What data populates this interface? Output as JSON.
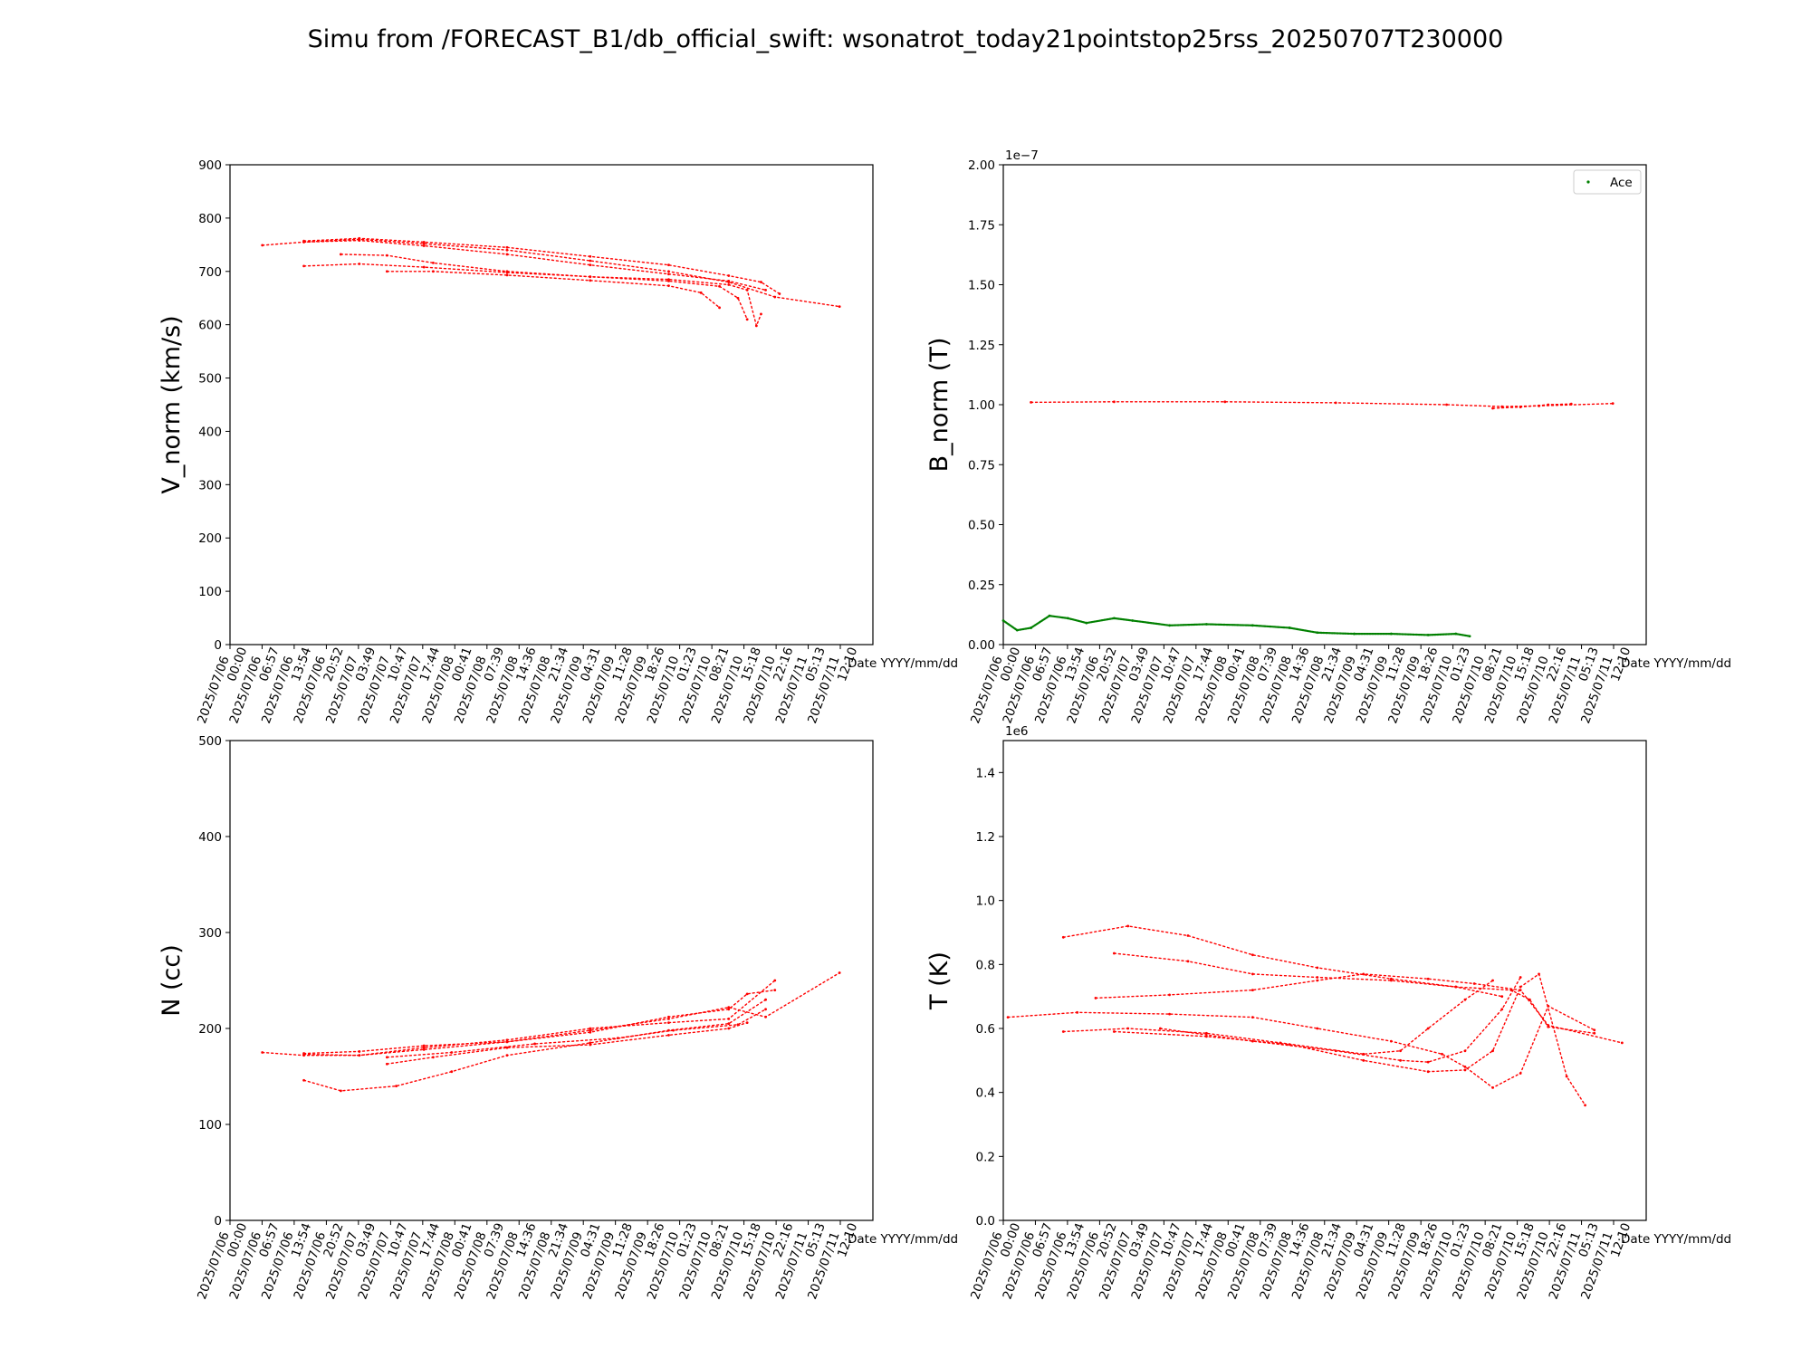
{
  "figure": {
    "title": "Simu from /FORECAST_B1/db_official_swift: wsonatrot_today21pointstop25rss_20250707T230000",
    "colors": {
      "sim": "#ff0000",
      "obs": "#008000",
      "axis": "#000000"
    }
  },
  "chart_data": [
    {
      "type": "line",
      "id": "vnorm",
      "ylabel": "V_norm (km/s)",
      "xlabel": "Date YYYY/mm/dd",
      "ylim": [
        0,
        900
      ],
      "yticks": [
        "0",
        "100",
        "200",
        "300",
        "400",
        "500",
        "600",
        "700",
        "800",
        "900"
      ],
      "xlim": [
        "2025/07/06 00:00",
        "2025/07/11 20:00"
      ],
      "xticks": [
        [
          "2025/07/06",
          "00:00"
        ],
        [
          "2025/07/06",
          "06:57"
        ],
        [
          "2025/07/06",
          "13:54"
        ],
        [
          "2025/07/06",
          "20:52"
        ],
        [
          "2025/07/07",
          "03:49"
        ],
        [
          "2025/07/07",
          "10:47"
        ],
        [
          "2025/07/07",
          "17:44"
        ],
        [
          "2025/07/08",
          "00:41"
        ],
        [
          "2025/07/08",
          "07:39"
        ],
        [
          "2025/07/08",
          "14:36"
        ],
        [
          "2025/07/08",
          "21:34"
        ],
        [
          "2025/07/09",
          "04:31"
        ],
        [
          "2025/07/09",
          "11:28"
        ],
        [
          "2025/07/09",
          "18:26"
        ],
        [
          "2025/07/10",
          "01:23"
        ],
        [
          "2025/07/10",
          "08:21"
        ],
        [
          "2025/07/10",
          "15:18"
        ],
        [
          "2025/07/10",
          "22:16"
        ],
        [
          "2025/07/11",
          "05:13"
        ],
        [
          "2025/07/11",
          "12:10"
        ]
      ],
      "series": [
        {
          "x": [
            "2025/07/06 07:00",
            "2025/07/06 16:00",
            "2025/07/07 04:00",
            "2025/07/07 18:00",
            "2025/07/08 12:00",
            "2025/07/09 06:00",
            "2025/07/09 23:00",
            "2025/07/10 12:00",
            "2025/07/10 22:00",
            "2025/07/11 12:00"
          ],
          "y": [
            749,
            755,
            760,
            752,
            740,
            720,
            700,
            680,
            652,
            634
          ]
        },
        {
          "x": [
            "2025/07/06 16:00",
            "2025/07/07 04:00",
            "2025/07/07 18:00",
            "2025/07/08 12:00",
            "2025/07/09 06:00",
            "2025/07/09 23:00",
            "2025/07/10 12:00",
            "2025/07/10 19:00",
            "2025/07/10 23:00"
          ],
          "y": [
            757,
            762,
            755,
            745,
            728,
            712,
            692,
            680,
            658
          ]
        },
        {
          "x": [
            "2025/07/06 16:00",
            "2025/07/07 04:00",
            "2025/07/07 18:00",
            "2025/07/08 12:00",
            "2025/07/09 06:00",
            "2025/07/09 23:00",
            "2025/07/10 12:00",
            "2025/07/10 20:00"
          ],
          "y": [
            755,
            758,
            748,
            732,
            712,
            695,
            682,
            665
          ]
        },
        {
          "x": [
            "2025/07/07 00:00",
            "2025/07/07 10:00",
            "2025/07/07 20:00",
            "2025/07/08 12:00",
            "2025/07/09 06:00",
            "2025/07/09 23:00",
            "2025/07/10 12:00",
            "2025/07/10 16:00",
            "2025/07/10 18:00",
            "2025/07/10 19:00"
          ],
          "y": [
            732,
            730,
            716,
            700,
            690,
            685,
            675,
            665,
            598,
            620
          ]
        },
        {
          "x": [
            "2025/07/06 16:00",
            "2025/07/07 04:00",
            "2025/07/07 18:00",
            "2025/07/08 12:00",
            "2025/07/09 06:00",
            "2025/07/09 23:00",
            "2025/07/10 10:00",
            "2025/07/10 14:00",
            "2025/07/10 16:00"
          ],
          "y": [
            710,
            714,
            708,
            698,
            690,
            682,
            672,
            650,
            610
          ]
        },
        {
          "x": [
            "2025/07/07 10:00",
            "2025/07/07 20:00",
            "2025/07/08 12:00",
            "2025/07/09 06:00",
            "2025/07/09 23:00",
            "2025/07/10 06:00",
            "2025/07/10 10:00"
          ],
          "y": [
            700,
            700,
            693,
            683,
            673,
            660,
            632
          ]
        }
      ]
    },
    {
      "type": "line",
      "id": "bnorm",
      "ylabel": "B_norm (T)",
      "xlabel": "Date YYYY/mm/dd",
      "multiplier": "1e−7",
      "ylim": [
        0,
        2.0
      ],
      "yticks": [
        "0.00",
        "0.25",
        "0.50",
        "0.75",
        "1.00",
        "1.25",
        "1.50",
        "1.75",
        "2.00"
      ],
      "xlim": [
        "2025/07/06 00:00",
        "2025/07/11 20:00"
      ],
      "xticks": [
        [
          "2025/07/06",
          "00:00"
        ],
        [
          "2025/07/06",
          "06:57"
        ],
        [
          "2025/07/06",
          "13:54"
        ],
        [
          "2025/07/06",
          "20:52"
        ],
        [
          "2025/07/07",
          "03:49"
        ],
        [
          "2025/07/07",
          "10:47"
        ],
        [
          "2025/07/07",
          "17:44"
        ],
        [
          "2025/07/08",
          "00:41"
        ],
        [
          "2025/07/08",
          "07:39"
        ],
        [
          "2025/07/08",
          "14:36"
        ],
        [
          "2025/07/08",
          "21:34"
        ],
        [
          "2025/07/09",
          "04:31"
        ],
        [
          "2025/07/09",
          "11:28"
        ],
        [
          "2025/07/09",
          "18:26"
        ],
        [
          "2025/07/10",
          "01:23"
        ],
        [
          "2025/07/10",
          "08:21"
        ],
        [
          "2025/07/10",
          "15:18"
        ],
        [
          "2025/07/10",
          "22:16"
        ],
        [
          "2025/07/11",
          "05:13"
        ],
        [
          "2025/07/11",
          "12:10"
        ]
      ],
      "legend": {
        "entries": [
          "Ace"
        ],
        "placement": "top-right"
      },
      "series": [
        {
          "x": [
            "2025/07/06 06:00",
            "2025/07/07 00:00",
            "2025/07/08 00:00",
            "2025/07/09 00:00",
            "2025/07/10 00:00",
            "2025/07/10 12:00",
            "2025/07/10 20:00",
            "2025/07/11 12:00"
          ],
          "y": [
            1.01,
            1.012,
            1.012,
            1.008,
            1.0,
            0.992,
            0.995,
            1.005
          ]
        },
        {
          "x": [
            "2025/07/10 10:00",
            "2025/07/10 16:00",
            "2025/07/10 22:00",
            "2025/07/11 03:00"
          ],
          "y": [
            0.985,
            0.99,
            1.0,
            1.003
          ]
        },
        {
          "name": "Ace",
          "x": [
            "2025/07/06 00:00",
            "2025/07/06 03:00",
            "2025/07/06 06:00",
            "2025/07/06 10:00",
            "2025/07/06 14:00",
            "2025/07/06 18:00",
            "2025/07/07 00:00",
            "2025/07/07 04:00",
            "2025/07/07 12:00",
            "2025/07/07 20:00",
            "2025/07/08 06:00",
            "2025/07/08 14:00",
            "2025/07/08 20:00",
            "2025/07/09 04:00",
            "2025/07/09 12:00",
            "2025/07/09 20:00",
            "2025/07/10 02:00",
            "2025/07/10 05:00"
          ],
          "y": [
            0.1,
            0.06,
            0.07,
            0.12,
            0.11,
            0.09,
            0.11,
            0.1,
            0.08,
            0.085,
            0.08,
            0.07,
            0.05,
            0.045,
            0.045,
            0.04,
            0.045,
            0.035
          ]
        }
      ]
    },
    {
      "type": "line",
      "id": "n",
      "ylabel": "N (cc)",
      "xlabel": "Date YYYY/mm/dd",
      "ylim": [
        0,
        500
      ],
      "yticks": [
        "0",
        "100",
        "200",
        "300",
        "400",
        "500"
      ],
      "xlim": [
        "2025/07/06 00:00",
        "2025/07/11 20:00"
      ],
      "xticks": [
        [
          "2025/07/06",
          "00:00"
        ],
        [
          "2025/07/06",
          "06:57"
        ],
        [
          "2025/07/06",
          "13:54"
        ],
        [
          "2025/07/06",
          "20:52"
        ],
        [
          "2025/07/07",
          "03:49"
        ],
        [
          "2025/07/07",
          "10:47"
        ],
        [
          "2025/07/07",
          "17:44"
        ],
        [
          "2025/07/08",
          "00:41"
        ],
        [
          "2025/07/08",
          "07:39"
        ],
        [
          "2025/07/08",
          "14:36"
        ],
        [
          "2025/07/08",
          "21:34"
        ],
        [
          "2025/07/09",
          "04:31"
        ],
        [
          "2025/07/09",
          "11:28"
        ],
        [
          "2025/07/09",
          "18:26"
        ],
        [
          "2025/07/10",
          "01:23"
        ],
        [
          "2025/07/10",
          "08:21"
        ],
        [
          "2025/07/10",
          "15:18"
        ],
        [
          "2025/07/10",
          "22:16"
        ],
        [
          "2025/07/11",
          "05:13"
        ],
        [
          "2025/07/11",
          "12:10"
        ]
      ],
      "series": [
        {
          "x": [
            "2025/07/06 07:00",
            "2025/07/06 16:00",
            "2025/07/07 04:00",
            "2025/07/07 18:00",
            "2025/07/08 12:00",
            "2025/07/09 06:00",
            "2025/07/09 23:00",
            "2025/07/10 12:00",
            "2025/07/10 20:00",
            "2025/07/11 12:00"
          ],
          "y": [
            175,
            172,
            172,
            178,
            186,
            198,
            210,
            222,
            212,
            258
          ]
        },
        {
          "x": [
            "2025/07/06 16:00",
            "2025/07/07 04:00",
            "2025/07/07 18:00",
            "2025/07/08 12:00",
            "2025/07/09 06:00",
            "2025/07/09 23:00",
            "2025/07/10 12:00",
            "2025/07/10 16:00",
            "2025/07/10 22:00"
          ],
          "y": [
            174,
            176,
            182,
            186,
            196,
            212,
            220,
            236,
            240
          ]
        },
        {
          "x": [
            "2025/07/06 16:00",
            "2025/07/07 04:00",
            "2025/07/07 18:00",
            "2025/07/08 12:00",
            "2025/07/09 06:00",
            "2025/07/09 23:00",
            "2025/07/10 12:00",
            "2025/07/10 22:00"
          ],
          "y": [
            173,
            172,
            180,
            188,
            200,
            206,
            210,
            250
          ]
        },
        {
          "x": [
            "2025/07/06 16:00",
            "2025/07/07 00:00",
            "2025/07/07 12:00",
            "2025/07/08 00:00",
            "2025/07/08 12:00",
            "2025/07/09 06:00",
            "2025/07/09 23:00",
            "2025/07/10 12:00",
            "2025/07/10 20:00"
          ],
          "y": [
            146,
            135,
            140,
            155,
            172,
            185,
            198,
            205,
            230
          ]
        },
        {
          "x": [
            "2025/07/07 10:00",
            "2025/07/07 20:00",
            "2025/07/08 12:00",
            "2025/07/09 06:00",
            "2025/07/09 23:00",
            "2025/07/10 12:00",
            "2025/07/10 16:00"
          ],
          "y": [
            163,
            170,
            180,
            183,
            193,
            200,
            206
          ]
        },
        {
          "x": [
            "2025/07/07 10:00",
            "2025/07/08 00:00",
            "2025/07/08 18:00",
            "2025/07/09 12:00",
            "2025/07/10 00:00",
            "2025/07/10 14:00",
            "2025/07/10 20:00"
          ],
          "y": [
            170,
            175,
            184,
            190,
            198,
            204,
            220
          ]
        }
      ]
    },
    {
      "type": "line",
      "id": "t",
      "ylabel": "T (K)",
      "xlabel": "Date YYYY/mm/dd",
      "multiplier": "1e6",
      "ylim": [
        0,
        1.5
      ],
      "yticks": [
        "0.0",
        "0.2",
        "0.4",
        "0.6",
        "0.8",
        "1.0",
        "1.2",
        "1.4"
      ],
      "ytick_values": [
        0,
        0.2,
        0.4,
        0.6,
        0.8,
        1.0,
        1.2,
        1.4
      ],
      "xlim": [
        "2025/07/06 00:00",
        "2025/07/11 20:00"
      ],
      "xticks": [
        [
          "2025/07/06",
          "00:00"
        ],
        [
          "2025/07/06",
          "06:57"
        ],
        [
          "2025/07/06",
          "13:54"
        ],
        [
          "2025/07/06",
          "20:52"
        ],
        [
          "2025/07/07",
          "03:49"
        ],
        [
          "2025/07/07",
          "10:47"
        ],
        [
          "2025/07/07",
          "17:44"
        ],
        [
          "2025/07/08",
          "00:41"
        ],
        [
          "2025/07/08",
          "07:39"
        ],
        [
          "2025/07/08",
          "14:36"
        ],
        [
          "2025/07/08",
          "21:34"
        ],
        [
          "2025/07/09",
          "04:31"
        ],
        [
          "2025/07/09",
          "11:28"
        ],
        [
          "2025/07/09",
          "18:26"
        ],
        [
          "2025/07/10",
          "01:23"
        ],
        [
          "2025/07/10",
          "08:21"
        ],
        [
          "2025/07/10",
          "15:18"
        ],
        [
          "2025/07/10",
          "22:16"
        ],
        [
          "2025/07/11",
          "05:13"
        ],
        [
          "2025/07/11",
          "12:10"
        ]
      ],
      "series": [
        {
          "x": [
            "2025/07/06 13:00",
            "2025/07/07 03:00",
            "2025/07/07 16:00",
            "2025/07/08 06:00",
            "2025/07/08 20:00",
            "2025/07/09 12:00",
            "2025/07/10 02:00",
            "2025/07/10 12:00"
          ],
          "y": [
            0.885,
            0.92,
            0.89,
            0.83,
            0.79,
            0.755,
            0.73,
            0.7
          ]
        },
        {
          "x": [
            "2025/07/07 00:00",
            "2025/07/07 16:00",
            "2025/07/08 06:00",
            "2025/07/08 20:00",
            "2025/07/09 12:00",
            "2025/07/10 02:00",
            "2025/07/10 14:00",
            "2025/07/10 18:00",
            "2025/07/10 22:00",
            "2025/07/11 08:00"
          ],
          "y": [
            0.835,
            0.81,
            0.77,
            0.76,
            0.75,
            0.73,
            0.72,
            0.69,
            0.605,
            0.585
          ]
        },
        {
          "x": [
            "2025/07/06 20:00",
            "2025/07/07 12:00",
            "2025/07/08 06:00",
            "2025/07/08 20:00",
            "2025/07/09 06:00",
            "2025/07/09 20:00",
            "2025/07/10 06:00",
            "2025/07/10 16:00",
            "2025/07/10 22:00",
            "2025/07/11 14:00"
          ],
          "y": [
            0.695,
            0.705,
            0.72,
            0.75,
            0.77,
            0.755,
            0.74,
            0.72,
            0.61,
            0.555
          ]
        },
        {
          "x": [
            "2025/07/06 01:00",
            "2025/07/06 16:00",
            "2025/07/07 12:00",
            "2025/07/08 06:00",
            "2025/07/08 20:00",
            "2025/07/09 12:00",
            "2025/07/09 23:00",
            "2025/07/10 04:00",
            "2025/07/10 10:00",
            "2025/07/10 16:00",
            "2025/07/10 22:00",
            "2025/07/11 08:00"
          ],
          "y": [
            0.635,
            0.65,
            0.645,
            0.635,
            0.6,
            0.56,
            0.52,
            0.48,
            0.415,
            0.46,
            0.67,
            0.595
          ]
        },
        {
          "x": [
            "2025/07/06 13:00",
            "2025/07/07 03:00",
            "2025/07/07 20:00",
            "2025/07/08 12:00",
            "2025/07/09 06:00",
            "2025/07/09 14:00",
            "2025/07/09 20:00",
            "2025/07/10 04:00",
            "2025/07/10 10:00"
          ],
          "y": [
            0.59,
            0.6,
            0.585,
            0.555,
            0.52,
            0.53,
            0.6,
            0.69,
            0.75
          ]
        },
        {
          "x": [
            "2025/07/07 00:00",
            "2025/07/07 20:00",
            "2025/07/08 14:00",
            "2025/07/09 06:00",
            "2025/07/09 20:00",
            "2025/07/10 04:00",
            "2025/07/10 10:00",
            "2025/07/10 16:00",
            "2025/07/10 20:00",
            "2025/07/11 02:00",
            "2025/07/11 06:00"
          ],
          "y": [
            0.59,
            0.575,
            0.55,
            0.5,
            0.465,
            0.47,
            0.53,
            0.73,
            0.77,
            0.45,
            0.36
          ]
        },
        {
          "x": [
            "2025/07/07 10:00",
            "2025/07/08 06:00",
            "2025/07/09 00:00",
            "2025/07/09 14:00",
            "2025/07/09 20:00",
            "2025/07/10 04:00",
            "2025/07/10 12:00",
            "2025/07/10 16:00"
          ],
          "y": [
            0.6,
            0.56,
            0.53,
            0.5,
            0.495,
            0.53,
            0.66,
            0.76
          ]
        }
      ]
    }
  ]
}
